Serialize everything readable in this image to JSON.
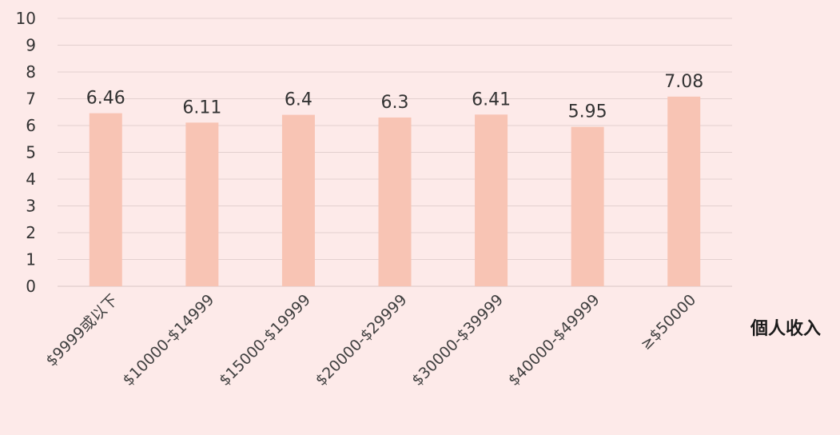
{
  "chart_data": {
    "type": "bar",
    "categories": [
      "$9999或以下",
      "$10000-$14999",
      "$15000-$19999",
      "$20000-$29999",
      "$30000-$39999",
      "$40000-$49999",
      "≥$50000"
    ],
    "values": [
      6.46,
      6.11,
      6.4,
      6.3,
      6.41,
      5.95,
      7.08
    ],
    "data_labels": [
      "6.46",
      "6.11",
      "6.4",
      "6.3",
      "6.41",
      "5.95",
      "7.08"
    ],
    "title": "",
    "xlabel": "個人收入",
    "ylabel": "",
    "ylim": [
      0,
      10
    ],
    "yticks": [
      "0",
      "1",
      "2",
      "3",
      "4",
      "5",
      "6",
      "7",
      "8",
      "9",
      "10"
    ],
    "grid": true,
    "legend": "none",
    "colors": {
      "bar": "#f8c4b4",
      "grid": "#e3d0cf",
      "background": "#fdeae9"
    }
  }
}
